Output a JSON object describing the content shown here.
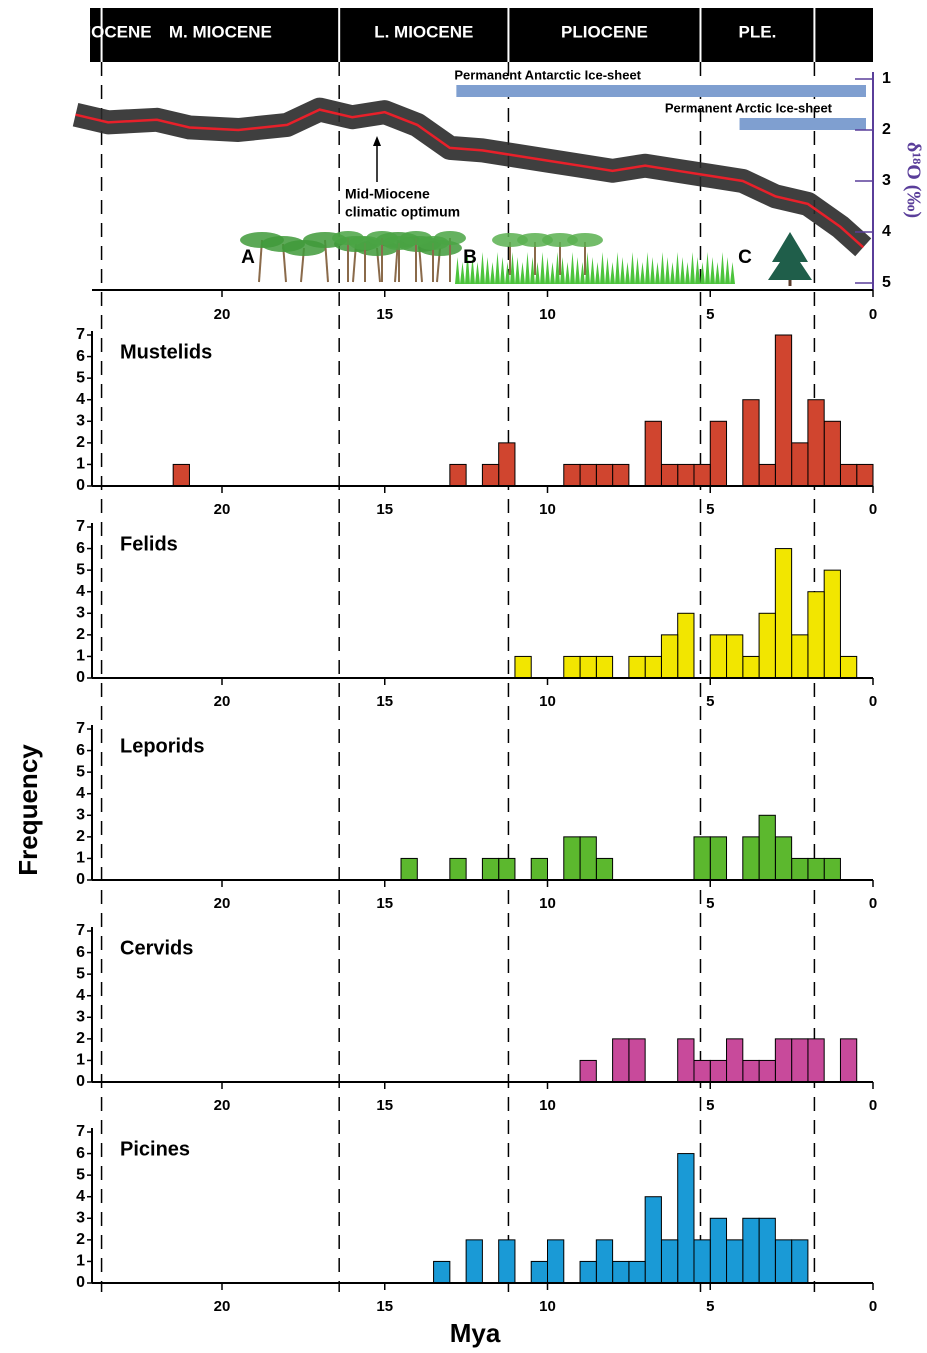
{
  "ylabel": "Frequency",
  "xlabel": "Mya",
  "chart_data": [
    {
      "type": "line",
      "epochs": [
        "E. MIOCENE",
        "M. MIOCENE",
        "L. MIOCENE",
        "PLIOCENE",
        "PLE."
      ],
      "epoch_boundaries": [
        23.7,
        16.4,
        11.2,
        5.3,
        1.8
      ],
      "x": [
        24.5,
        23.5,
        22,
        21,
        19.5,
        18,
        17,
        16,
        15,
        14,
        13,
        12,
        11,
        10,
        9,
        8,
        7,
        6,
        5,
        4,
        3,
        2,
        1,
        0.3
      ],
      "values": [
        1.7,
        1.85,
        1.8,
        1.95,
        2.0,
        1.9,
        1.6,
        1.75,
        1.65,
        1.9,
        2.35,
        2.4,
        2.5,
        2.6,
        2.7,
        2.8,
        2.7,
        2.8,
        2.9,
        3.0,
        3.3,
        3.45,
        3.9,
        4.3
      ],
      "color": "#e8202a",
      "band_color": "#2a2a2a",
      "xlim": [
        24,
        0
      ],
      "xticks": [
        20,
        15,
        10,
        5,
        0
      ],
      "ylim": [
        1,
        5
      ],
      "yticks": [
        1,
        2,
        3,
        4,
        5
      ],
      "y_inverted": true,
      "y2label": "δ¹⁸O (‰)",
      "ice_sheets": [
        {
          "name": "Permanent Antarctic Ice-sheet",
          "start": 12.8
        },
        {
          "name": "Permanent Arctic Ice-sheet",
          "start": 4.1
        }
      ],
      "ice_color": "#7f9fd0",
      "annotation": [
        "Mid-Miocene",
        "climatic optimum"
      ],
      "vegetation_labels": [
        "A",
        "B",
        "C"
      ]
    },
    {
      "type": "histogram",
      "title": "Mustelids",
      "color": "#d0452f",
      "bins": [
        0,
        0.5,
        1,
        1.5,
        2,
        2.5,
        3,
        3.5,
        4,
        4.5,
        5,
        5.5,
        6,
        6.5,
        7,
        7.5,
        8,
        8.5,
        9,
        9.5,
        10,
        10.5,
        11,
        11.5,
        12,
        12.5,
        13,
        13.5,
        14,
        14.5,
        15,
        15.5,
        16,
        16.5,
        17,
        17.5,
        18,
        18.5,
        19,
        19.5,
        20,
        20.5,
        21,
        21.5,
        22
      ],
      "values": [
        1,
        1,
        3,
        4,
        2,
        7,
        1,
        4,
        0,
        3,
        1,
        1,
        1,
        3,
        0,
        1,
        1,
        1,
        1,
        0,
        0,
        0,
        2,
        1,
        0,
        1,
        0,
        0,
        0,
        0,
        0,
        0,
        0,
        0,
        0,
        0,
        0,
        0,
        0,
        0,
        0,
        0,
        1,
        0
      ],
      "xlim": [
        24,
        0
      ],
      "xticks": [
        20,
        15,
        10,
        5,
        0
      ],
      "ylim": [
        0,
        7
      ],
      "yticks": [
        0,
        1,
        2,
        3,
        4,
        5,
        6,
        7
      ]
    },
    {
      "type": "histogram",
      "title": "Felids",
      "color": "#f2e600",
      "bins": [
        0,
        0.5,
        1,
        1.5,
        2,
        2.5,
        3,
        3.5,
        4,
        4.5,
        5,
        5.5,
        6,
        6.5,
        7,
        7.5,
        8,
        8.5,
        9,
        9.5,
        10,
        10.5,
        11,
        11.5,
        12,
        12.5,
        13,
        13.5,
        14,
        14.5,
        15,
        15.5,
        16,
        16.5,
        17,
        17.5,
        18,
        18.5,
        19,
        19.5,
        20,
        20.5,
        21,
        21.5,
        22
      ],
      "values": [
        0,
        1,
        5,
        4,
        2,
        6,
        3,
        1,
        2,
        2,
        0,
        3,
        2,
        1,
        1,
        0,
        1,
        1,
        1,
        0,
        0,
        1,
        0,
        0,
        0,
        0,
        0,
        0,
        0,
        0,
        0,
        0,
        0,
        0,
        0,
        0,
        0,
        0,
        0,
        0,
        0,
        0,
        0,
        0
      ],
      "xlim": [
        24,
        0
      ],
      "xticks": [
        20,
        15,
        10,
        5,
        0
      ],
      "ylim": [
        0,
        7
      ],
      "yticks": [
        0,
        1,
        2,
        3,
        4,
        5,
        6,
        7
      ]
    },
    {
      "type": "histogram",
      "title": "Leporids",
      "color": "#5cb82e",
      "bins": [
        0,
        0.5,
        1,
        1.5,
        2,
        2.5,
        3,
        3.5,
        4,
        4.5,
        5,
        5.5,
        6,
        6.5,
        7,
        7.5,
        8,
        8.5,
        9,
        9.5,
        10,
        10.5,
        11,
        11.5,
        12,
        12.5,
        13,
        13.5,
        14,
        14.5,
        15,
        15.5,
        16,
        16.5,
        17,
        17.5,
        18,
        18.5,
        19,
        19.5,
        20,
        20.5,
        21,
        21.5,
        22
      ],
      "values": [
        0,
        0,
        1,
        1,
        1,
        2,
        3,
        2,
        0,
        2,
        2,
        0,
        0,
        0,
        0,
        0,
        1,
        2,
        2,
        0,
        1,
        0,
        1,
        1,
        0,
        1,
        0,
        0,
        1,
        0,
        0,
        0,
        0,
        0,
        0,
        0,
        0,
        0,
        0,
        0,
        0,
        0,
        0,
        0
      ],
      "xlim": [
        24,
        0
      ],
      "xticks": [
        20,
        15,
        10,
        5,
        0
      ],
      "ylim": [
        0,
        7
      ],
      "yticks": [
        0,
        1,
        2,
        3,
        4,
        5,
        6,
        7
      ]
    },
    {
      "type": "histogram",
      "title": "Cervids",
      "color": "#c84a9b",
      "bins": [
        0,
        0.5,
        1,
        1.5,
        2,
        2.5,
        3,
        3.5,
        4,
        4.5,
        5,
        5.5,
        6,
        6.5,
        7,
        7.5,
        8,
        8.5,
        9,
        9.5,
        10,
        10.5,
        11,
        11.5,
        12,
        12.5,
        13,
        13.5,
        14,
        14.5,
        15,
        15.5,
        16,
        16.5,
        17,
        17.5,
        18,
        18.5,
        19,
        19.5,
        20,
        20.5,
        21,
        21.5,
        22
      ],
      "values": [
        0,
        2,
        0,
        2,
        2,
        2,
        1,
        1,
        2,
        1,
        1,
        2,
        0,
        0,
        2,
        2,
        0,
        1,
        0,
        0,
        0,
        0,
        0,
        0,
        0,
        0,
        0,
        0,
        0,
        0,
        0,
        0,
        0,
        0,
        0,
        0,
        0,
        0,
        0,
        0,
        0,
        0,
        0,
        0
      ],
      "xlim": [
        24,
        0
      ],
      "xticks": [
        20,
        15,
        10,
        5,
        0
      ],
      "ylim": [
        0,
        7
      ],
      "yticks": [
        0,
        1,
        2,
        3,
        4,
        5,
        6,
        7
      ]
    },
    {
      "type": "histogram",
      "title": "Picines",
      "color": "#1a9ad6",
      "bins": [
        0,
        0.5,
        1,
        1.5,
        2,
        2.5,
        3,
        3.5,
        4,
        4.5,
        5,
        5.5,
        6,
        6.5,
        7,
        7.5,
        8,
        8.5,
        9,
        9.5,
        10,
        10.5,
        11,
        11.5,
        12,
        12.5,
        13,
        13.5,
        14,
        14.5,
        15,
        15.5,
        16,
        16.5,
        17,
        17.5,
        18,
        18.5,
        19,
        19.5,
        20,
        20.5,
        21,
        21.5,
        22
      ],
      "values": [
        0,
        0,
        0,
        0,
        2,
        2,
        3,
        3,
        2,
        3,
        2,
        6,
        2,
        4,
        1,
        1,
        2,
        1,
        0,
        2,
        1,
        0,
        2,
        0,
        2,
        0,
        1,
        0,
        0,
        0,
        0,
        0,
        0,
        0,
        0,
        0,
        0,
        0,
        0,
        0,
        0,
        0,
        0,
        0
      ],
      "xlim": [
        24,
        0
      ],
      "xticks": [
        20,
        15,
        10,
        5,
        0
      ],
      "ylim": [
        0,
        7
      ],
      "yticks": [
        0,
        1,
        2,
        3,
        4,
        5,
        6,
        7
      ]
    }
  ]
}
